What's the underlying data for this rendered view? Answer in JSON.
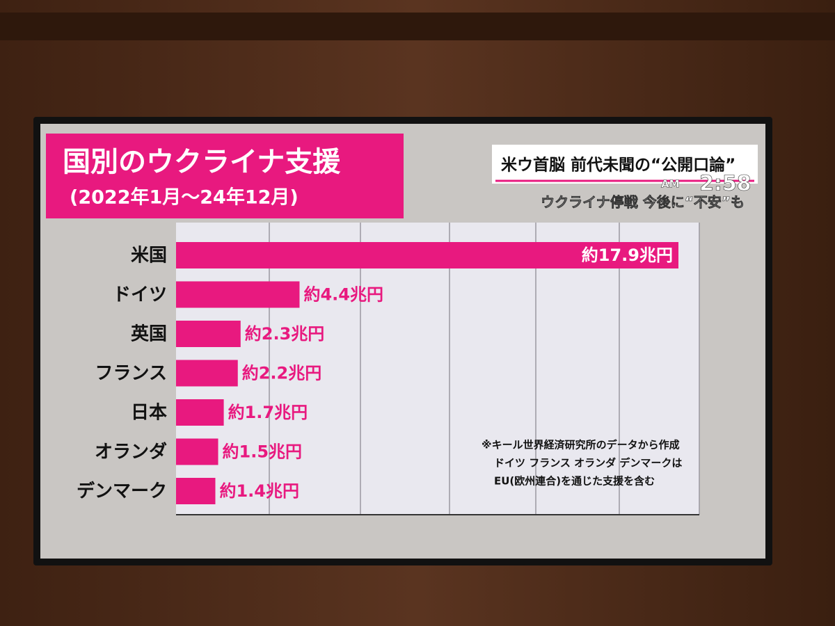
{
  "chart_data": {
    "type": "bar",
    "orientation": "horizontal",
    "title": "国別のウクライナ支援",
    "subtitle": "(2022年1月～24年12月)",
    "categories": [
      "米国",
      "ドイツ",
      "英国",
      "フランス",
      "日本",
      "オランダ",
      "デンマーク"
    ],
    "values": [
      17.9,
      4.4,
      2.3,
      2.2,
      1.7,
      1.5,
      1.4
    ],
    "value_labels": [
      "約17.9兆円",
      "約4.4兆円",
      "約2.3兆円",
      "約2.2兆円",
      "約1.7兆円",
      "約1.5兆円",
      "約1.4兆円"
    ],
    "color": "#e8197f",
    "annotations": [
      "※キール世界経済研究所のデータから作成",
      "ドイツ フランス オランダ デンマークは",
      "EU(欧州連合)を通じた支援を含む"
    ]
  },
  "headline": "米ウ首脳 前代未聞の“公開口論”",
  "subheadline": "ウクライナ停戦 今後に“不安”も",
  "clock": {
    "period": "AM",
    "time": "2:58"
  }
}
